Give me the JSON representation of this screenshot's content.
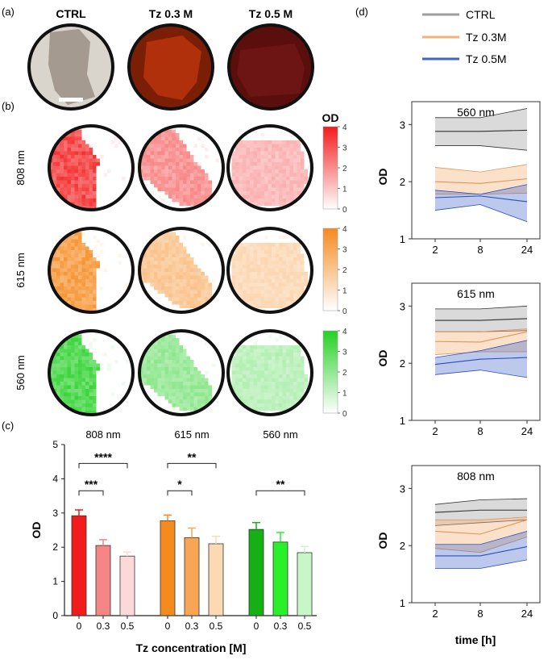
{
  "panel_labels": {
    "a": "(a)",
    "b": "(b)",
    "c": "(c)",
    "d": "(d)"
  },
  "colors": {
    "ctrl": "#9e9e9e",
    "tz03": "#f4b27a",
    "tz05": "#3f63c8",
    "red": "#f21c1c",
    "orange": "#f58a1f",
    "green": "#25d025"
  },
  "photos": {
    "labels": [
      "CTRL",
      "Tz 0.3 M",
      "Tz 0.5 M"
    ],
    "bg_colors": [
      "#d9d5cc",
      "#7a1e06",
      "#5a0f0c"
    ],
    "sample_colors": [
      "#a49a8f",
      "#b0300c",
      "#6d1514"
    ]
  },
  "heatmaps": {
    "rows": [
      "808 nm",
      "615 nm",
      "560 nm"
    ],
    "colorbar_title": "OD",
    "colorbar_ticks": [
      "0",
      "1",
      "2",
      "3",
      "4"
    ],
    "colorbar_colors": [
      "#f21c1c",
      "#f58a1f",
      "#25d025"
    ]
  },
  "chart_data": [
    {
      "type": "bar",
      "title": "",
      "group_titles": [
        "808 nm",
        "615 nm",
        "560 nm"
      ],
      "categories": [
        "0",
        "0.3",
        "0.5"
      ],
      "series": [
        {
          "name": "808 nm",
          "values": [
            2.92,
            2.05,
            1.74
          ],
          "errors": [
            0.17,
            0.17,
            0.12
          ],
          "colors": [
            "#f21c1c",
            "#f68585",
            "#fcd9d9"
          ]
        },
        {
          "name": "615 nm",
          "values": [
            2.77,
            2.28,
            2.1
          ],
          "errors": [
            0.17,
            0.28,
            0.22
          ],
          "colors": [
            "#f58a1f",
            "#f8a656",
            "#fbd9b3"
          ]
        },
        {
          "name": "560 nm",
          "values": [
            2.52,
            2.15,
            1.84
          ],
          "errors": [
            0.2,
            0.28,
            0.18
          ],
          "colors": [
            "#14b014",
            "#2af02a",
            "#c7f7c7"
          ]
        }
      ],
      "significance": [
        {
          "group": 0,
          "from": 0,
          "to": 2,
          "label": "****",
          "y": 4.45
        },
        {
          "group": 0,
          "from": 0,
          "to": 1,
          "label": "***",
          "y": 3.65
        },
        {
          "group": 1,
          "from": 0,
          "to": 2,
          "label": "**",
          "y": 4.45
        },
        {
          "group": 1,
          "from": 0,
          "to": 1,
          "label": "*",
          "y": 3.65
        },
        {
          "group": 2,
          "from": 0,
          "to": 2,
          "label": "**",
          "y": 3.65
        }
      ],
      "xlabel": "Tz concentration [M]",
      "ylabel": "OD",
      "ylim": [
        0,
        5
      ],
      "yticks": [
        "0",
        "1",
        "2",
        "3",
        "4",
        "5"
      ]
    },
    {
      "type": "area",
      "legend": [
        "CTRL",
        "Tz 0.3M",
        "Tz 0.5M"
      ],
      "x": [
        2,
        8,
        24
      ],
      "xticks": [
        "2",
        "8",
        "24"
      ],
      "yticks": [
        "1",
        "2",
        "3"
      ],
      "ylim": [
        1,
        3.4
      ],
      "ylabel": "OD",
      "xlabel": "time [h]",
      "panels": [
        {
          "title": "560 nm",
          "series": [
            {
              "name": "CTRL",
              "mean": [
                2.88,
                2.88,
                2.9
              ],
              "upper": [
                3.12,
                3.12,
                3.28
              ],
              "lower": [
                2.63,
                2.63,
                2.55
              ]
            },
            {
              "name": "Tz 0.3M",
              "mean": [
                2.0,
                1.97,
                2.05
              ],
              "upper": [
                2.25,
                2.17,
                2.3
              ],
              "lower": [
                1.78,
                1.78,
                1.8
              ]
            },
            {
              "name": "Tz 0.5M",
              "mean": [
                1.72,
                1.75,
                1.65
              ],
              "upper": [
                1.85,
                1.78,
                1.95
              ],
              "lower": [
                1.5,
                1.6,
                1.3
              ]
            }
          ]
        },
        {
          "title": "615 nm",
          "series": [
            {
              "name": "CTRL",
              "mean": [
                2.75,
                2.75,
                2.78
              ],
              "upper": [
                2.95,
                2.95,
                3.0
              ],
              "lower": [
                2.55,
                2.55,
                2.57
              ]
            },
            {
              "name": "Tz 0.3M",
              "mean": [
                2.38,
                2.37,
                2.55
              ],
              "upper": [
                2.55,
                2.55,
                2.6
              ],
              "lower": [
                2.15,
                2.2,
                2.2
              ]
            },
            {
              "name": "Tz 0.5M",
              "mean": [
                1.98,
                2.07,
                2.1
              ],
              "upper": [
                2.1,
                2.22,
                2.4
              ],
              "lower": [
                1.8,
                1.88,
                1.75
              ]
            }
          ]
        },
        {
          "title": "808 nm",
          "series": [
            {
              "name": "CTRL",
              "mean": [
                2.58,
                2.62,
                2.62
              ],
              "upper": [
                2.72,
                2.8,
                2.82
              ],
              "lower": [
                2.35,
                2.4,
                2.45
              ]
            },
            {
              "name": "Tz 0.3M",
              "mean": [
                2.25,
                2.2,
                2.45
              ],
              "upper": [
                2.45,
                2.45,
                2.5
              ],
              "lower": [
                1.95,
                1.88,
                2.15
              ]
            },
            {
              "name": "Tz 0.5M",
              "mean": [
                1.82,
                1.82,
                1.98
              ],
              "upper": [
                2.02,
                2.02,
                2.25
              ],
              "lower": [
                1.6,
                1.6,
                1.75
              ]
            }
          ]
        }
      ]
    }
  ]
}
